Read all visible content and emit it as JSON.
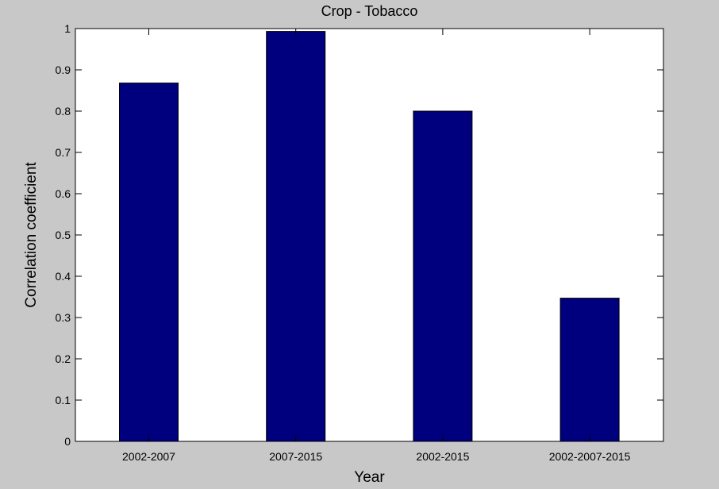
{
  "chart_data": {
    "type": "bar",
    "title": "Crop - Tobacco",
    "xlabel": "Year",
    "ylabel": "Correlation coefficient",
    "categories": [
      "2002-2007",
      "2007-2015",
      "2002-2015",
      "2002-2007-2015"
    ],
    "values": [
      0.868,
      0.993,
      0.8,
      0.347
    ],
    "ylim": [
      0,
      1
    ],
    "yticks": [
      0,
      0.1,
      0.2,
      0.3,
      0.4,
      0.5,
      0.6,
      0.7,
      0.8,
      0.9,
      1
    ],
    "ytick_labels": [
      "0",
      "0.1",
      "0.2",
      "0.3",
      "0.4",
      "0.5",
      "0.6",
      "0.7",
      "0.8",
      "0.9",
      "1"
    ],
    "grid": false,
    "bar_color": "#00007f",
    "background_color": "#c8c8c8",
    "plot_background_color": "#ffffff"
  }
}
